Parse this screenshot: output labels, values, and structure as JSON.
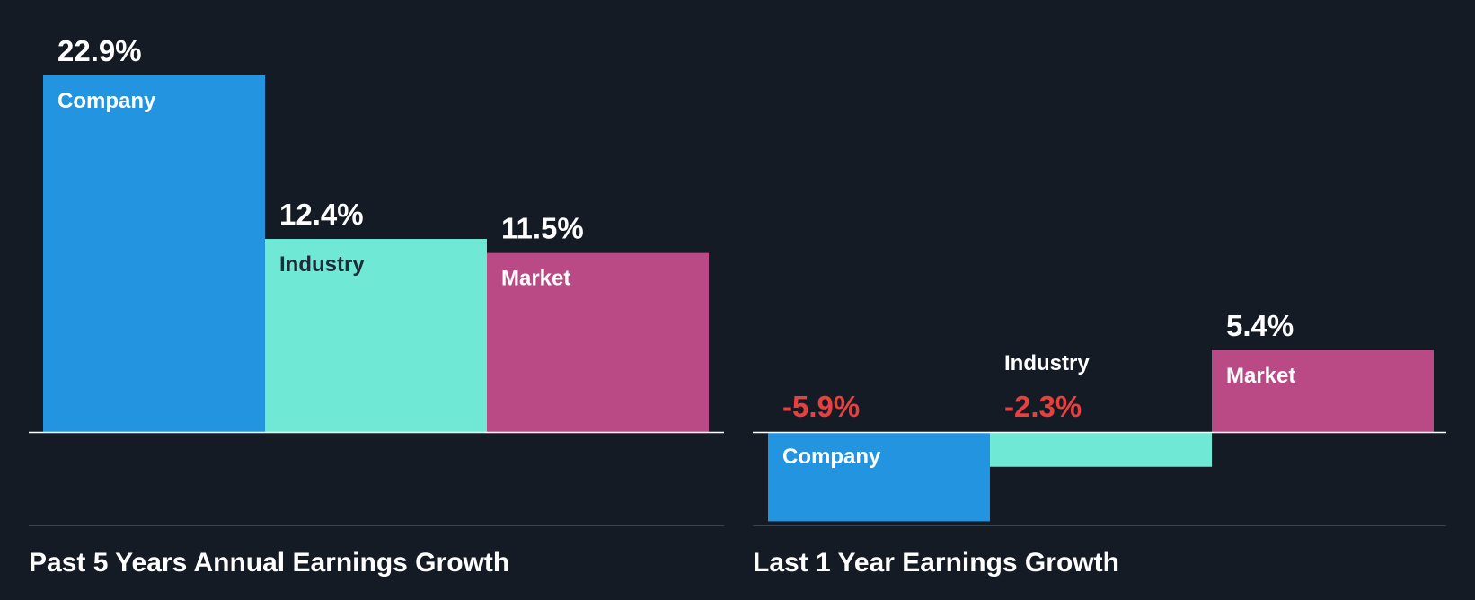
{
  "colors": {
    "background": "#151b24",
    "company": "#2394e0",
    "industry": "#6fe8d6",
    "market": "#b94a86",
    "positive_text": "#ffffff",
    "negative_text": "#e8403f",
    "axis": "#ffffff",
    "separator": "#4a5059"
  },
  "chart_data": [
    {
      "type": "bar",
      "title": "Past 5 Years Annual Earnings Growth",
      "categories": [
        "Company",
        "Industry",
        "Market"
      ],
      "values": [
        22.9,
        12.4,
        11.5
      ],
      "value_labels": [
        "22.9%",
        "12.4%",
        "11.5%"
      ],
      "ylim": [
        0,
        22.9
      ],
      "unit": "%"
    },
    {
      "type": "bar",
      "title": "Last 1 Year Earnings Growth",
      "categories": [
        "Company",
        "Industry",
        "Market"
      ],
      "values": [
        -5.9,
        -2.3,
        5.4
      ],
      "value_labels": [
        "-5.9%",
        "-2.3%",
        "5.4%"
      ],
      "ylim": [
        -5.9,
        5.4
      ],
      "unit": "%"
    }
  ]
}
